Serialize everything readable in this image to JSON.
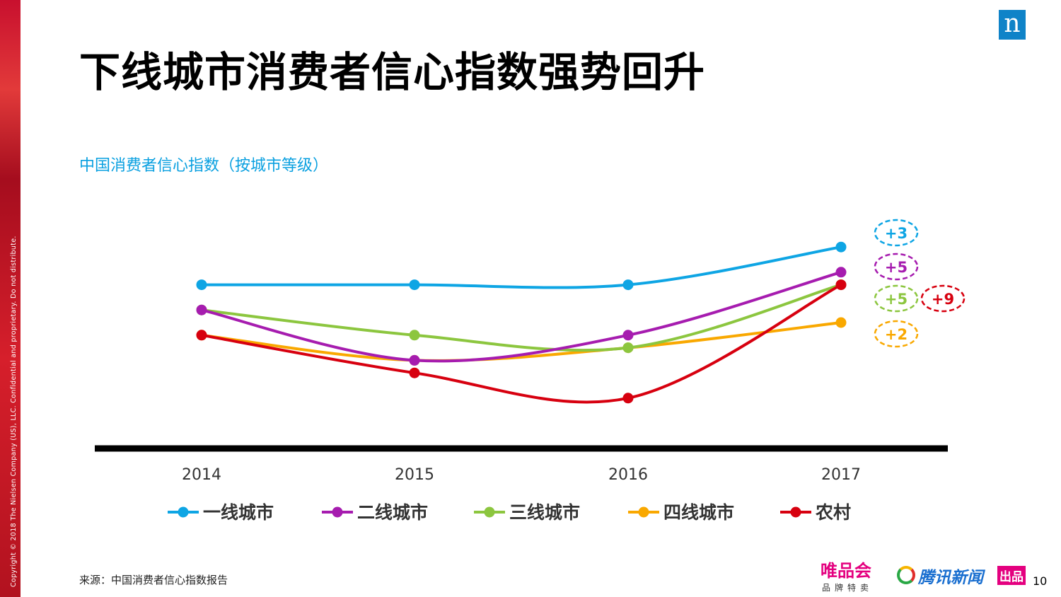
{
  "copyright": "Copyright © 2018 The Nielsen Company (US), LLC. Confidential and proprietary. Do not distribute.",
  "logo": "n",
  "title": "下线城市消费者信心指数强势回升",
  "source": "来源：中国消费者信心指数报告",
  "footer": {
    "brand1": "唯品会",
    "brand1_sub": "品牌特卖",
    "brand2": "腾讯新闻",
    "brand2_badge": "出品",
    "page": "10"
  },
  "chart_data": {
    "type": "line",
    "title": "中国消费者信心指数（按城市等级）",
    "categories": [
      "2014",
      "2015",
      "2016",
      "2017"
    ],
    "legend_position": "bottom",
    "grid": false,
    "y_axis_labels_shown": false,
    "series": [
      {
        "name": "一线城市",
        "color": "#0ea5e4",
        "values": [
          113,
          113,
          113,
          116
        ],
        "change_label": "+3"
      },
      {
        "name": "二线城市",
        "color": "#a61caf",
        "values": [
          111,
          107,
          109,
          114
        ],
        "change_label": "+5"
      },
      {
        "name": "三线城市",
        "color": "#8cc63f",
        "values": [
          111,
          109,
          108,
          113
        ],
        "change_label": "+5"
      },
      {
        "name": "四线城市",
        "color": "#f9a800",
        "values": [
          109,
          107,
          108,
          110
        ],
        "change_label": "+2"
      },
      {
        "name": "农村",
        "color": "#d7000f",
        "values": [
          109,
          106,
          104,
          113
        ],
        "change_label": "+9"
      }
    ]
  }
}
